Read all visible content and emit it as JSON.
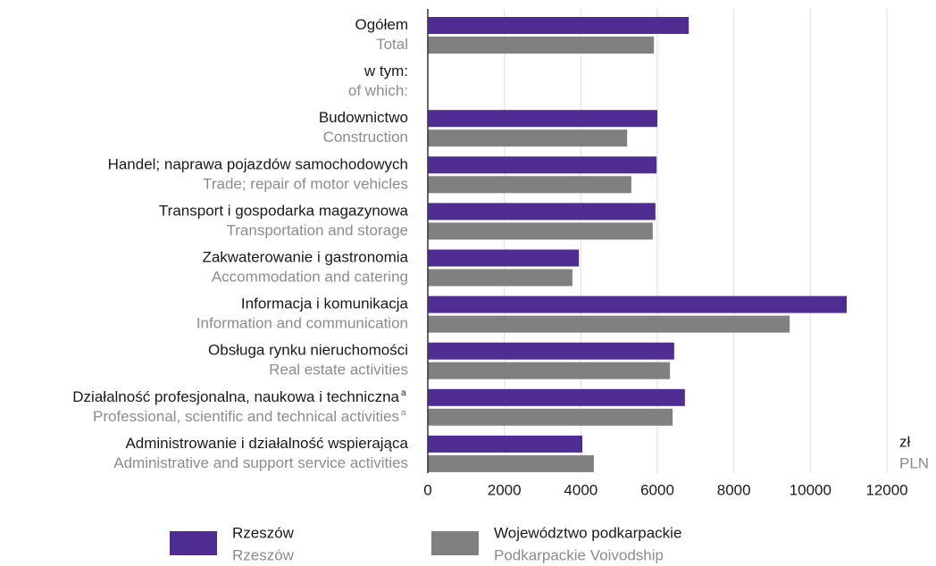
{
  "chart_data": {
    "type": "bar",
    "orientation": "horizontal",
    "categories": [
      {
        "pl": "Ogółem",
        "en": "Total"
      },
      {
        "pl": "w tym:",
        "en": "of which:"
      },
      {
        "pl": "Budownictwo",
        "en": "Construction"
      },
      {
        "pl": "Handel; naprawa pojazdów samochodowych",
        "en": "Trade; repair of motor vehicles"
      },
      {
        "pl": "Transport i gospodarka magazynowa",
        "en": "Transportation and storage"
      },
      {
        "pl": "Zakwaterowanie i gastronomia",
        "en": "Accommodation and catering"
      },
      {
        "pl": "Informacja i komunikacja",
        "en": "Information and communication"
      },
      {
        "pl": "Obsługa rynku nieruchomości",
        "en": "Real estate activities"
      },
      {
        "pl": "Działalność profesjonalna, naukowa i techniczna",
        "en": "Professional, scientific and technical activities",
        "note": "a"
      },
      {
        "pl": "Administrowanie i działalność wspierająca",
        "en": "Administrative and support service activities"
      }
    ],
    "series": [
      {
        "name": "Rzeszów",
        "name_en": "Rzeszów",
        "color": "#4f2d93",
        "values": [
          6820,
          null,
          6000,
          5980,
          5950,
          3950,
          10950,
          6440,
          6720,
          4040
        ]
      },
      {
        "name": "Województwo podkarpackie",
        "name_en": "Podkarpackie Voivodship",
        "color": "#808080",
        "values": [
          5910,
          null,
          5210,
          5320,
          5880,
          3780,
          9460,
          6330,
          6400,
          4340
        ]
      }
    ],
    "xlim": [
      0,
      12000
    ],
    "xticks": [
      0,
      2000,
      4000,
      6000,
      8000,
      10000,
      12000
    ],
    "unit": {
      "pl": "zł",
      "en": "PLN"
    },
    "grid": true
  }
}
